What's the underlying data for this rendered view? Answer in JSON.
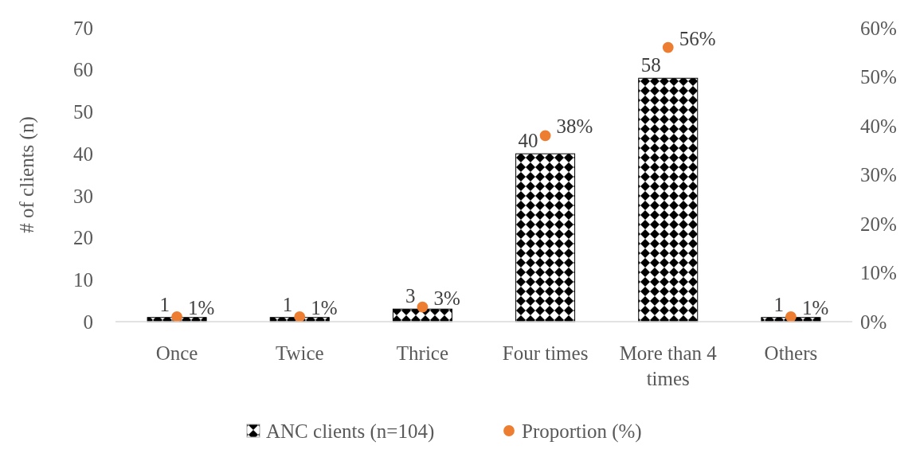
{
  "chart_data": {
    "type": "bar",
    "ylabel": "# of clients (n)",
    "categories": [
      "Once",
      "Twice",
      "Thrice",
      "Four times",
      "More than 4 times",
      "Others"
    ],
    "series": [
      {
        "name": "ANC clients (n=104)",
        "color": "#000000",
        "values": [
          1,
          1,
          3,
          40,
          58,
          1
        ],
        "value_labels": [
          "1",
          "1",
          "3",
          "40",
          "58",
          "1"
        ]
      },
      {
        "name": "Proportion (%)",
        "type": "scatter",
        "axis": "y2",
        "color": "#ed7d31",
        "values": [
          1,
          1,
          3,
          38,
          56,
          1
        ],
        "value_labels": [
          "1%",
          "1%",
          "3%",
          "38%",
          "56%",
          "1%"
        ]
      }
    ],
    "ylim": [
      0,
      70
    ],
    "yticks": [
      0,
      10,
      20,
      30,
      40,
      50,
      60,
      70
    ],
    "y2lim": [
      0,
      60
    ],
    "y2ticks": [
      {
        "value": 0,
        "label": "0%"
      },
      {
        "value": 10,
        "label": "10%"
      },
      {
        "value": 20,
        "label": "20%"
      },
      {
        "value": 30,
        "label": "30%"
      },
      {
        "value": 40,
        "label": "40%"
      },
      {
        "value": 50,
        "label": "50%"
      },
      {
        "value": 60,
        "label": "60%"
      }
    ],
    "grid": false,
    "legend": "bottom",
    "marker": "circle"
  }
}
